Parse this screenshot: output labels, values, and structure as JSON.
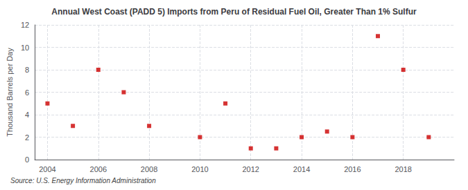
{
  "chart_data": {
    "type": "scatter",
    "title": "Annual West Coast (PADD 5) Imports from Peru of Residual Fuel Oil, Greater Than 1% Sulfur",
    "ylabel": "Thousand Barrels per Day",
    "annotations": [
      "Source: U.S. Energy Information Administration"
    ],
    "x": [
      2004,
      2005,
      2006,
      2007,
      2008,
      2010,
      2011,
      2012,
      2013,
      2014,
      2015,
      2016,
      2017,
      2018,
      2019
    ],
    "values": [
      5,
      3,
      8,
      6,
      3,
      2,
      5,
      1,
      1,
      2,
      2.5,
      2,
      11,
      8,
      2
    ],
    "color": "#cc0000",
    "marker": "square",
    "xlim": [
      2003.5,
      2020
    ],
    "ylim": [
      0,
      12
    ],
    "xticks": [
      2004,
      2006,
      2008,
      2010,
      2012,
      2014,
      2016,
      2018
    ],
    "yticks": [
      0,
      2,
      4,
      6,
      8,
      10,
      12
    ],
    "grid": true
  }
}
